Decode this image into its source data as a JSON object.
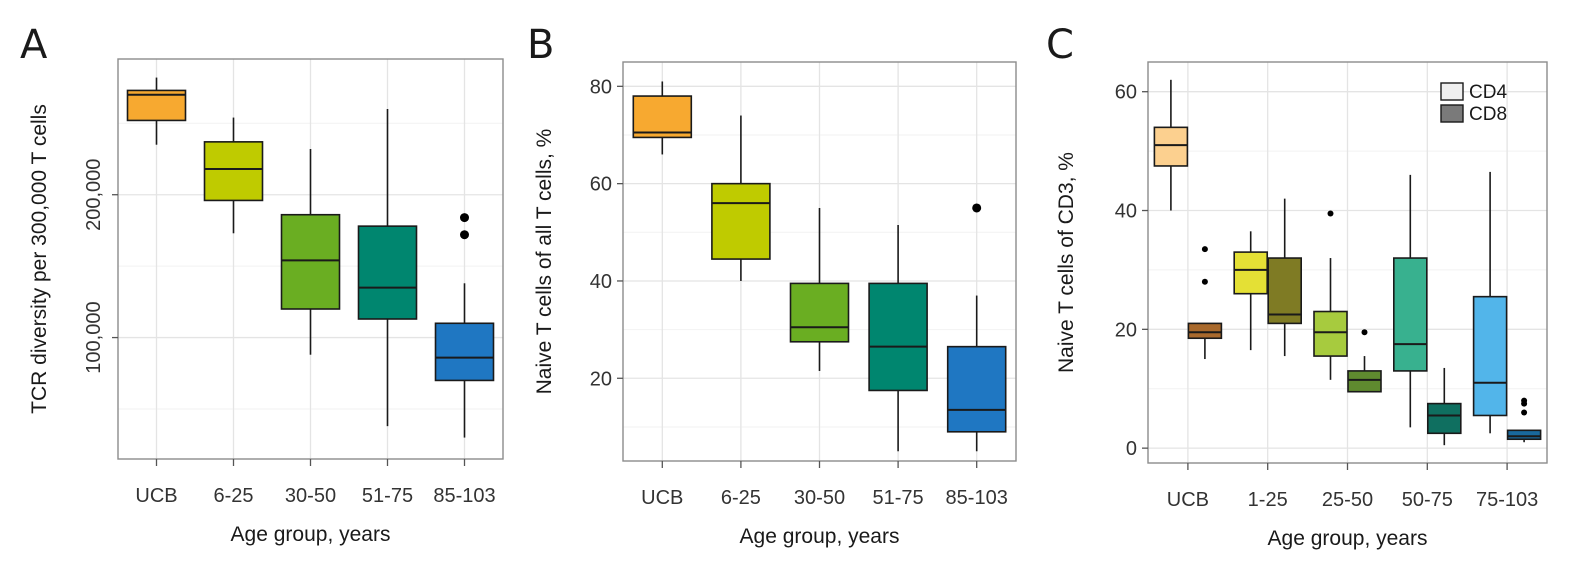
{
  "chart_data": [
    {
      "type": "box",
      "panel": "A",
      "title": "",
      "xlabel": "Age group, years",
      "ylabel": "TCR diversity per 300,000 T cells",
      "ylim": [
        15000,
        295000
      ],
      "grid": true,
      "y_ticks": [
        100000,
        200000
      ],
      "y_tick_labels": [
        "100,000",
        "200,000"
      ],
      "categories": [
        "UCB",
        "6-25",
        "30-50",
        "51-75",
        "85-103"
      ],
      "series": [
        {
          "colors": [
            "#F7A930",
            "#BFCB00",
            "#6AAE22",
            "#00866F",
            "#1F77C2"
          ],
          "boxes": [
            {
              "whisker_low": 235000,
              "q1": 252000,
              "median": 270000,
              "q3": 273000,
              "whisker_high": 282000,
              "outliers": []
            },
            {
              "whisker_low": 173000,
              "q1": 196000,
              "median": 218000,
              "q3": 237000,
              "whisker_high": 254000,
              "outliers": []
            },
            {
              "whisker_low": 88000,
              "q1": 120000,
              "median": 154000,
              "q3": 186000,
              "whisker_high": 232000,
              "outliers": []
            },
            {
              "whisker_low": 38000,
              "q1": 113000,
              "median": 135000,
              "q3": 178000,
              "whisker_high": 260000,
              "outliers": []
            },
            {
              "whisker_low": 30000,
              "q1": 70000,
              "median": 86000,
              "q3": 110000,
              "whisker_high": 138000,
              "outliers": [
                172000,
                184000
              ]
            }
          ]
        }
      ]
    },
    {
      "type": "box",
      "panel": "B",
      "title": "",
      "xlabel": "Age group, years",
      "ylabel": "Naive T cells of all T cells, %",
      "ylim": [
        3,
        85
      ],
      "grid": true,
      "y_ticks": [
        20,
        40,
        60,
        80
      ],
      "y_tick_labels": [
        "20",
        "40",
        "60",
        "80"
      ],
      "categories": [
        "UCB",
        "6-25",
        "30-50",
        "51-75",
        "85-103"
      ],
      "series": [
        {
          "colors": [
            "#F7A930",
            "#BFCB00",
            "#6AAE22",
            "#00866F",
            "#1F77C2"
          ],
          "boxes": [
            {
              "whisker_low": 66,
              "q1": 69.5,
              "median": 70.5,
              "q3": 78,
              "whisker_high": 81,
              "outliers": []
            },
            {
              "whisker_low": 40,
              "q1": 44.5,
              "median": 56,
              "q3": 60,
              "whisker_high": 74,
              "outliers": []
            },
            {
              "whisker_low": 21.5,
              "q1": 27.5,
              "median": 30.5,
              "q3": 39.5,
              "whisker_high": 55,
              "outliers": []
            },
            {
              "whisker_low": 5,
              "q1": 17.5,
              "median": 26.5,
              "q3": 39.5,
              "whisker_high": 51.5,
              "outliers": []
            },
            {
              "whisker_low": 5,
              "q1": 9,
              "median": 13.5,
              "q3": 26.5,
              "whisker_high": 37,
              "outliers": [
                55
              ]
            }
          ]
        }
      ]
    },
    {
      "type": "box",
      "panel": "C",
      "title": "",
      "xlabel": "Age group, years",
      "ylabel": "Naive T cells of CD3, %",
      "ylim": [
        -2.5,
        65
      ],
      "grid": true,
      "legend": "top-right",
      "y_ticks": [
        0,
        20,
        40,
        60
      ],
      "y_tick_labels": [
        "0",
        "20",
        "40",
        "60"
      ],
      "categories": [
        "UCB",
        "1-25",
        "25-50",
        "50-75",
        "75-103"
      ],
      "series": [
        {
          "name": "CD4",
          "legend_color": "#EFEFEF",
          "colors": [
            "#FCD08F",
            "#E4E035",
            "#A7CB3E",
            "#38B18F",
            "#52B5EA"
          ],
          "boxes": [
            {
              "whisker_low": 40,
              "q1": 47.5,
              "median": 51,
              "q3": 54,
              "whisker_high": 62,
              "outliers": []
            },
            {
              "whisker_low": 16.5,
              "q1": 26,
              "median": 30,
              "q3": 33,
              "whisker_high": 36.5,
              "outliers": []
            },
            {
              "whisker_low": 11.5,
              "q1": 15.5,
              "median": 19.5,
              "q3": 23,
              "whisker_high": 32,
              "outliers": [
                39.5
              ]
            },
            {
              "whisker_low": 3.5,
              "q1": 13,
              "median": 17.5,
              "q3": 32,
              "whisker_high": 46,
              "outliers": []
            },
            {
              "whisker_low": 2.5,
              "q1": 5.5,
              "median": 11,
              "q3": 25.5,
              "whisker_high": 46.5,
              "outliers": []
            }
          ]
        },
        {
          "name": "CD8",
          "legend_color": "#7A7A7A",
          "colors": [
            "#A9692C",
            "#7F7B24",
            "#5F8A2F",
            "#0F6F60",
            "#19689C"
          ],
          "boxes": [
            {
              "whisker_low": 15,
              "q1": 18.5,
              "median": 19.5,
              "q3": 21,
              "whisker_high": 21,
              "outliers": [
                28,
                33.5
              ]
            },
            {
              "whisker_low": 15.5,
              "q1": 21,
              "median": 22.5,
              "q3": 32,
              "whisker_high": 42,
              "outliers": []
            },
            {
              "whisker_low": 9.5,
              "q1": 9.5,
              "median": 11.5,
              "q3": 13,
              "whisker_high": 15.5,
              "outliers": [
                19.5
              ]
            },
            {
              "whisker_low": 0.5,
              "q1": 2.5,
              "median": 5.5,
              "q3": 7.5,
              "whisker_high": 13.5,
              "outliers": []
            },
            {
              "whisker_low": 1,
              "q1": 1.5,
              "median": 2,
              "q3": 3,
              "whisker_high": 3,
              "outliers": [
                6,
                7.5,
                8
              ]
            }
          ]
        }
      ]
    }
  ]
}
